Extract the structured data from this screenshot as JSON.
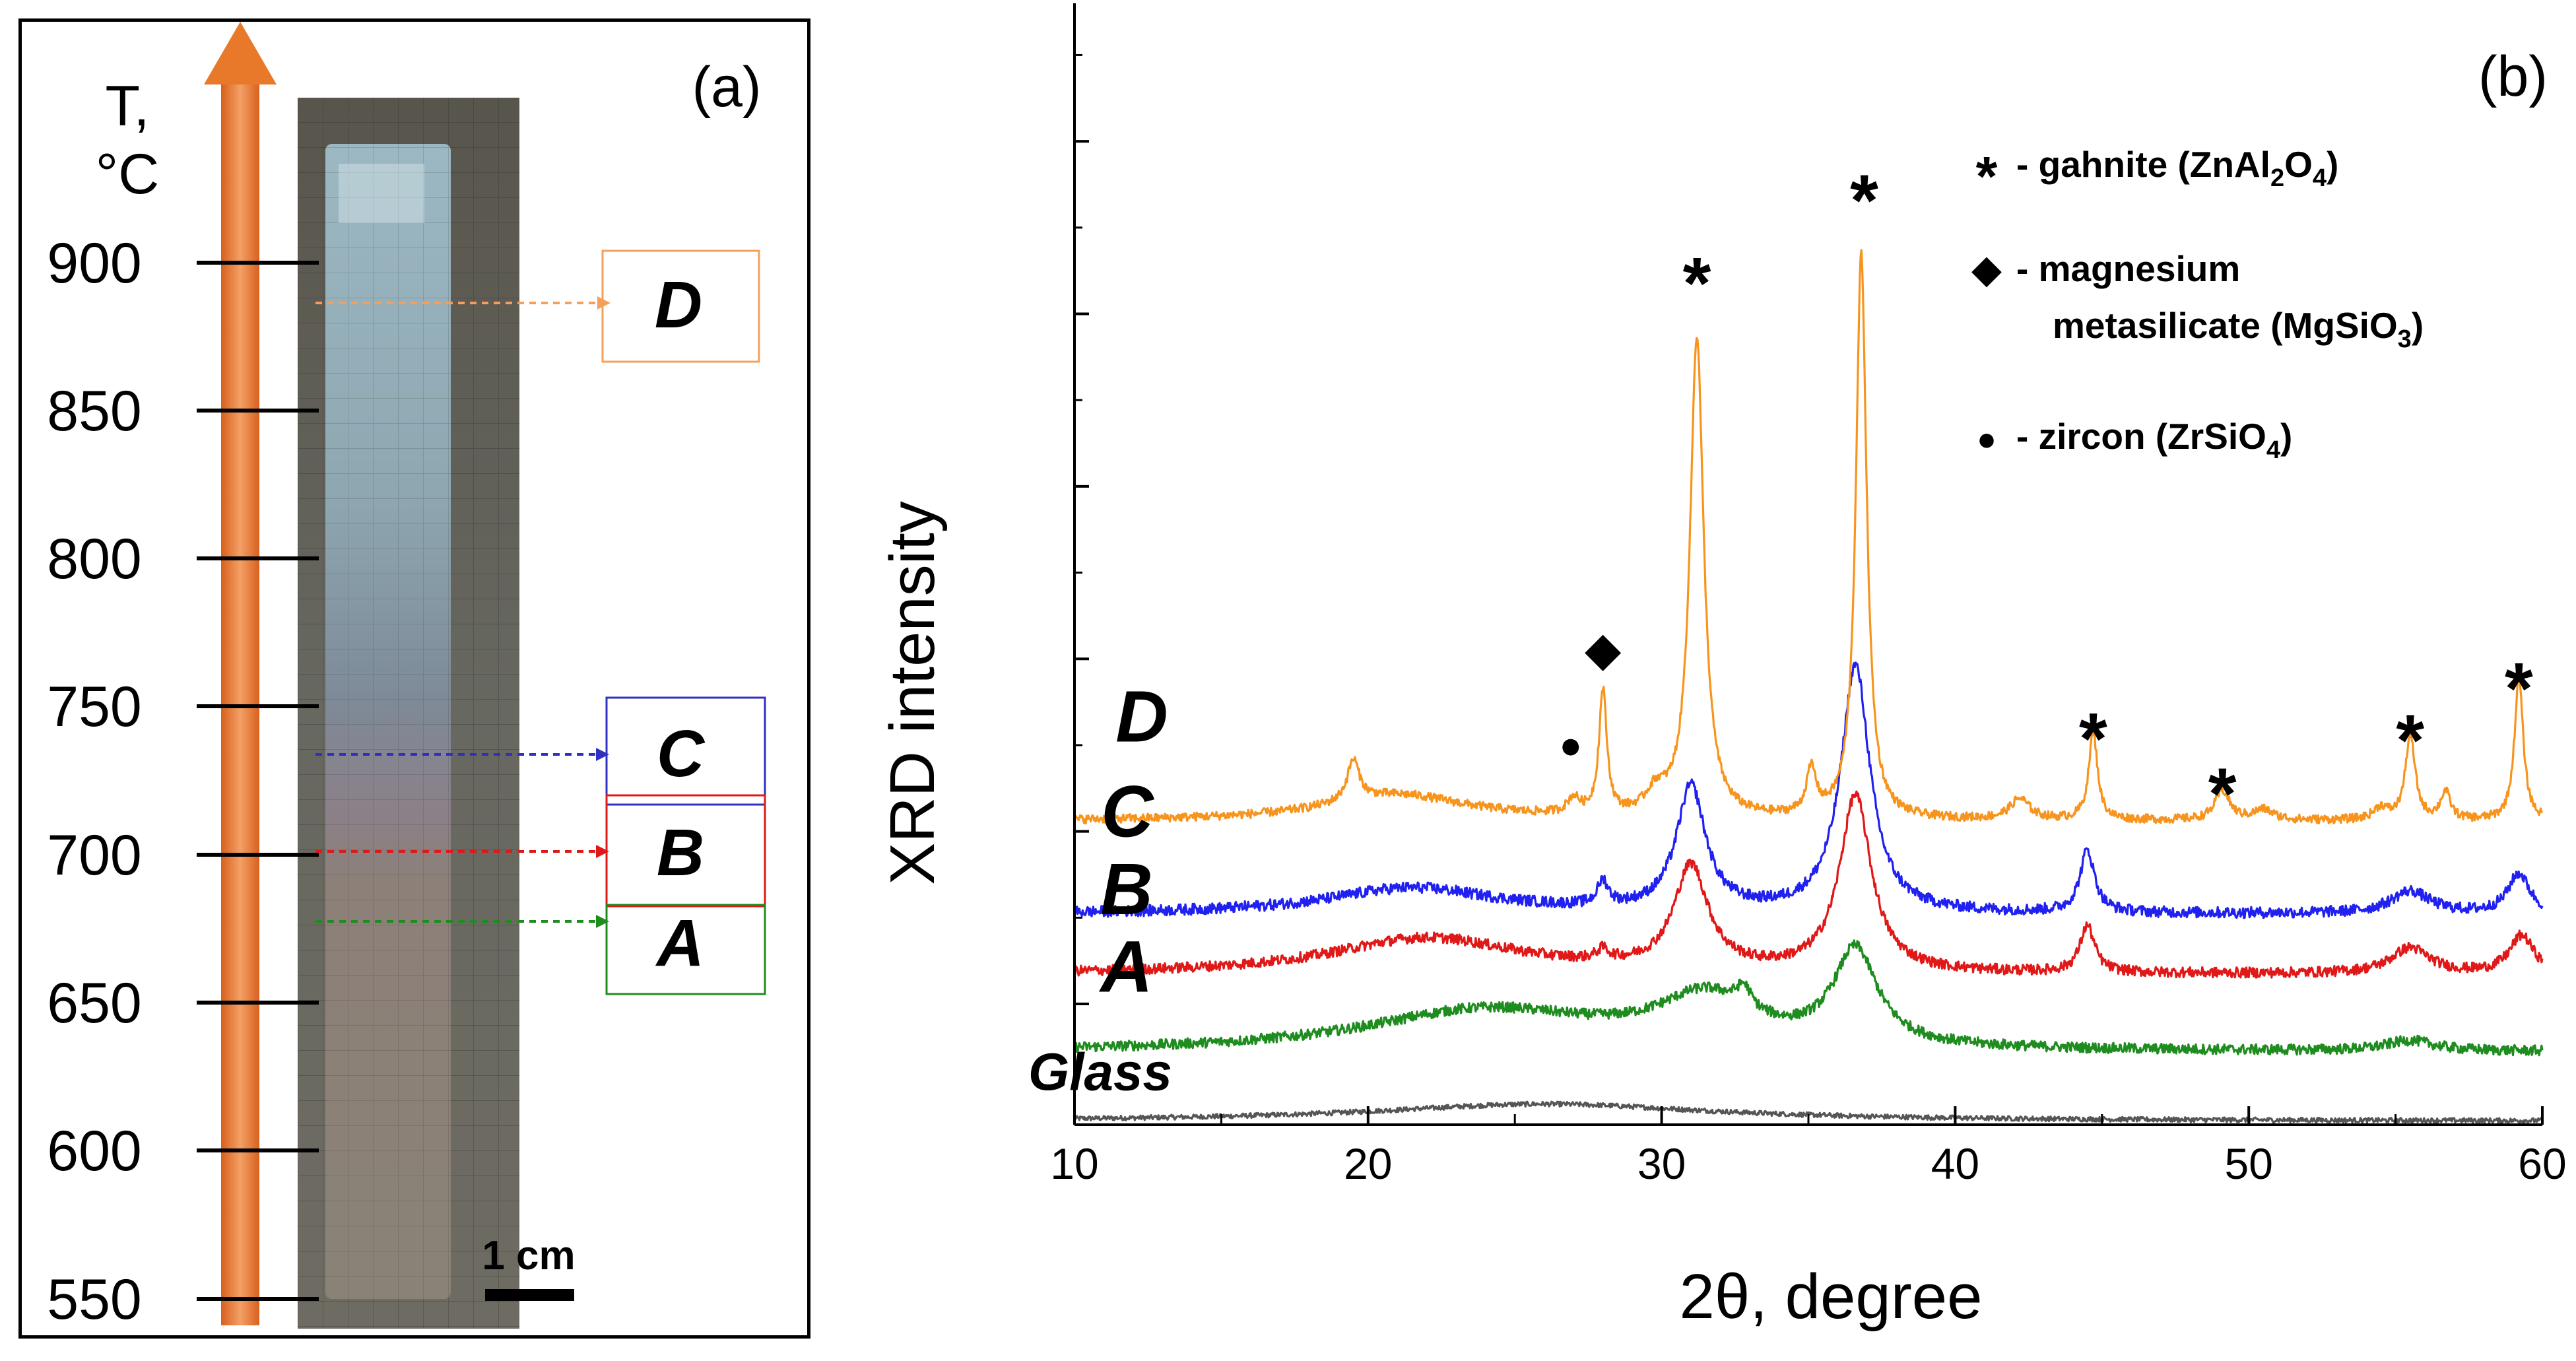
{
  "panel_a": {
    "label": "(a)",
    "temp_axis_label_line1": "T,",
    "temp_axis_label_line2": "°C",
    "temperatures": [
      "900",
      "850",
      "800",
      "750",
      "700",
      "650",
      "600",
      "550"
    ],
    "scale_bar_label": "1 cm",
    "zones": [
      {
        "label": "D",
        "color": "#F5A05A"
      },
      {
        "label": "C",
        "color": "#3030C0"
      },
      {
        "label": "B",
        "color": "#E01818"
      },
      {
        "label": "A",
        "color": "#1E8C1E"
      }
    ],
    "arrow_color": "#E8782A"
  },
  "panel_b": {
    "label": "(b)",
    "legend": [
      {
        "symbol": "*",
        "text": "- gahnite (ZnAl",
        "sub": "2",
        "text2": "O",
        "sub2": "4",
        "text3": ")"
      },
      {
        "symbol": "◆",
        "text": "- magnesium",
        "text_line2": "metasilicate (MgSiO",
        "sub": "3",
        "text3": ")"
      },
      {
        "symbol": "●",
        "text": "- zircon (ZrSiO",
        "sub": "4",
        "text3": ")"
      }
    ]
  },
  "chart_data": {
    "type": "line",
    "title": "",
    "xlabel": "2θ, degree",
    "ylabel": "XRD intensity",
    "xlim": [
      10,
      60
    ],
    "xticks": [
      "10",
      "20",
      "30",
      "40",
      "50",
      "60"
    ],
    "ylim": [
      -0.7,
      5.8
    ],
    "yticks_unlabeled": [
      0,
      1,
      2,
      3,
      4,
      5
    ],
    "series": [
      {
        "name": "Glass",
        "color": "#555555",
        "baseline": -0.68,
        "peaks": [
          [
            26,
            0.1,
            7
          ]
        ],
        "noise": 0.014
      },
      {
        "name": "A",
        "color": "#1E8C1E",
        "baseline": -0.28,
        "peaks": [
          [
            24,
            0.24,
            5
          ],
          [
            31.5,
            0.28,
            2
          ],
          [
            32.8,
            0.12,
            0.3
          ],
          [
            36.6,
            0.55,
            0.9
          ],
          [
            55.5,
            0.06,
            1
          ]
        ],
        "noise": 0.03
      },
      {
        "name": "B",
        "color": "#E01818",
        "baseline": 0.17,
        "peaks": [
          [
            22,
            0.21,
            4
          ],
          [
            28,
            0.06,
            0.25
          ],
          [
            31,
            0.6,
            0.7
          ],
          [
            36.6,
            1.02,
            0.65
          ],
          [
            44.5,
            0.27,
            0.3
          ],
          [
            55.5,
            0.15,
            0.8
          ],
          [
            59.3,
            0.22,
            0.5
          ]
        ],
        "noise": 0.03
      },
      {
        "name": "C",
        "color": "#2020F0",
        "baseline": 0.52,
        "peaks": [
          [
            21.5,
            0.15,
            3.5
          ],
          [
            28,
            0.14,
            0.22
          ],
          [
            31,
            0.72,
            0.6
          ],
          [
            36.6,
            1.43,
            0.6
          ],
          [
            44.5,
            0.36,
            0.3
          ],
          [
            55.5,
            0.13,
            0.8
          ],
          [
            59.2,
            0.23,
            0.45
          ]
        ],
        "noise": 0.032
      },
      {
        "name": "D",
        "color": "#F7941D",
        "baseline": 1.06,
        "peaks": [
          [
            19.5,
            0.24,
            0.25
          ],
          [
            21,
            0.15,
            3
          ],
          [
            27,
            0.09,
            0.25
          ],
          [
            28,
            0.72,
            0.16
          ],
          [
            29.8,
            0.12,
            0.4
          ],
          [
            31.2,
            2.79,
            0.28
          ],
          [
            35.1,
            0.26,
            0.2
          ],
          [
            36.8,
            3.27,
            0.22
          ],
          [
            42.2,
            0.12,
            0.4
          ],
          [
            44.7,
            0.51,
            0.18
          ],
          [
            49.1,
            0.17,
            0.3
          ],
          [
            50.5,
            0.06,
            0.4
          ],
          [
            54.5,
            0.07,
            0.3
          ],
          [
            55.5,
            0.49,
            0.2
          ],
          [
            56.7,
            0.16,
            0.2
          ],
          [
            59.2,
            0.83,
            0.18
          ]
        ],
        "noise": 0.025
      }
    ],
    "markers": [
      {
        "symbol": "*",
        "x": 31.2,
        "y": 4.27
      },
      {
        "symbol": "*",
        "x": 36.9,
        "y": 4.75
      },
      {
        "symbol": "◆",
        "x": 28.0,
        "y": 2.05
      },
      {
        "symbol": "●",
        "x": 26.9,
        "y": 1.51
      },
      {
        "symbol": "*",
        "x": 44.7,
        "y": 1.63
      },
      {
        "symbol": "*",
        "x": 49.1,
        "y": 1.31
      },
      {
        "symbol": "*",
        "x": 55.5,
        "y": 1.62
      },
      {
        "symbol": "*",
        "x": 59.2,
        "y": 1.92
      }
    ],
    "curve_labels": [
      {
        "text": "D",
        "series": "D"
      },
      {
        "text": "C",
        "series": "C"
      },
      {
        "text": "B",
        "series": "B"
      },
      {
        "text": "A",
        "series": "A"
      },
      {
        "text": "Glass",
        "series": "Glass"
      }
    ]
  }
}
